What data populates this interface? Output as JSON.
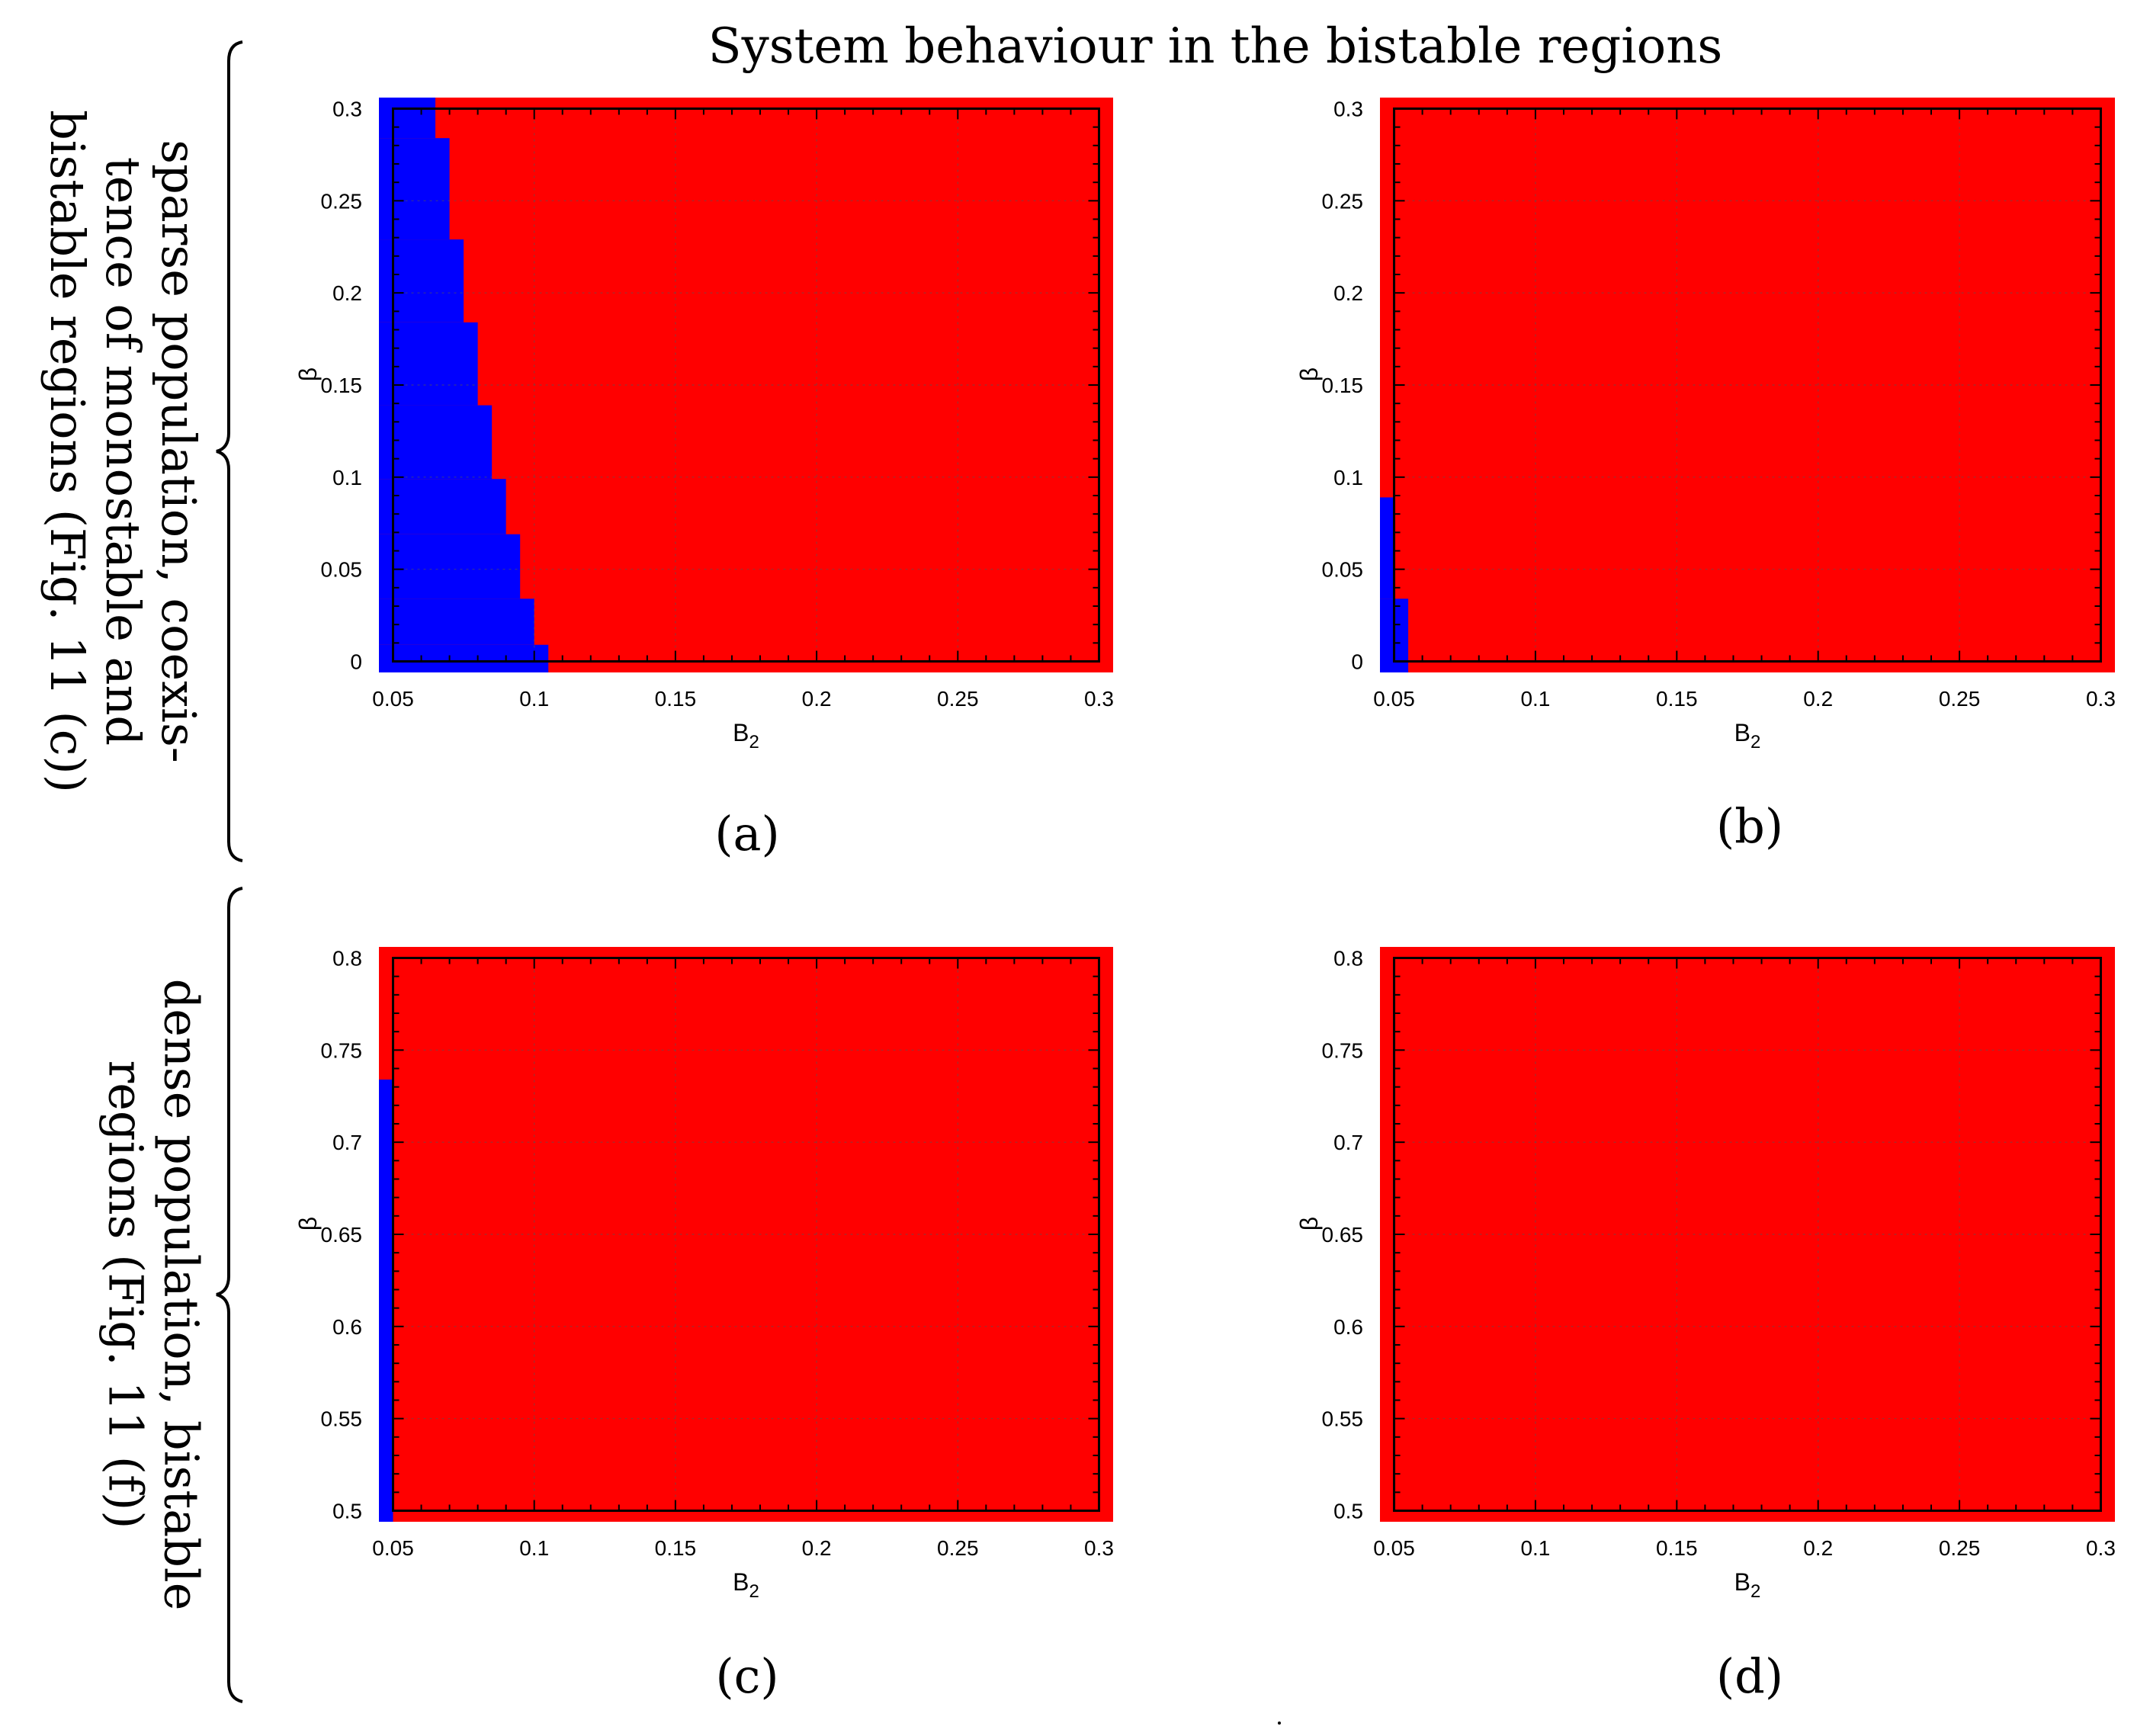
{
  "title": "System behaviour in the bistable regions",
  "row_labels": [
    {
      "lines": [
        "sparse population, coexis-",
        "tence of monostable and",
        "bistable regions (Fig. 11 (c))"
      ]
    },
    {
      "lines": [
        "dense population, bistable",
        "regions (Fig. 11 (f))"
      ]
    }
  ],
  "colors": {
    "red_region": "#ff0000",
    "blue_region": "#0000ff",
    "axis": "#000000",
    "grid": "#555555"
  },
  "chart_data": [
    {
      "type": "heatmap",
      "caption": "(a)",
      "xlabel": "B",
      "xlabel_sub": "2",
      "ylabel": "β",
      "xlim": [
        0.045,
        0.305
      ],
      "ylim": [
        -0.006,
        0.306
      ],
      "plot_xlim": [
        0.05,
        0.3
      ],
      "plot_ylim": [
        0.0,
        0.3
      ],
      "x_ticks": [
        "0.05",
        "0.1",
        "0.15",
        "0.2",
        "0.25",
        "0.3"
      ],
      "y_ticks": [
        "0",
        "0.05",
        "0.1",
        "0.15",
        "0.2",
        "0.25",
        "0.3"
      ],
      "background": "red",
      "blue_region": [
        {
          "x0": 0.045,
          "x1": 0.105,
          "y0": -0.006,
          "y1": 0.009
        },
        {
          "x0": 0.045,
          "x1": 0.1,
          "y0": 0.009,
          "y1": 0.034
        },
        {
          "x0": 0.045,
          "x1": 0.095,
          "y0": 0.034,
          "y1": 0.069
        },
        {
          "x0": 0.045,
          "x1": 0.09,
          "y0": 0.069,
          "y1": 0.099
        },
        {
          "x0": 0.045,
          "x1": 0.085,
          "y0": 0.099,
          "y1": 0.139
        },
        {
          "x0": 0.045,
          "x1": 0.08,
          "y0": 0.139,
          "y1": 0.184
        },
        {
          "x0": 0.045,
          "x1": 0.075,
          "y0": 0.184,
          "y1": 0.229
        },
        {
          "x0": 0.045,
          "x1": 0.07,
          "y0": 0.229,
          "y1": 0.284
        },
        {
          "x0": 0.045,
          "x1": 0.065,
          "y0": 0.284,
          "y1": 0.306
        }
      ]
    },
    {
      "type": "heatmap",
      "caption": "(b)",
      "xlabel": "B",
      "xlabel_sub": "2",
      "ylabel": "β",
      "xlim": [
        0.045,
        0.305
      ],
      "ylim": [
        -0.006,
        0.306
      ],
      "plot_xlim": [
        0.05,
        0.3
      ],
      "plot_ylim": [
        0.0,
        0.3
      ],
      "x_ticks": [
        "0.05",
        "0.1",
        "0.15",
        "0.2",
        "0.25",
        "0.3"
      ],
      "y_ticks": [
        "0",
        "0.05",
        "0.1",
        "0.15",
        "0.2",
        "0.25",
        "0.3"
      ],
      "background": "red",
      "blue_region": [
        {
          "x0": 0.045,
          "x1": 0.055,
          "y0": -0.006,
          "y1": 0.034
        },
        {
          "x0": 0.045,
          "x1": 0.05,
          "y0": 0.034,
          "y1": 0.089
        }
      ]
    },
    {
      "type": "heatmap",
      "caption": "(c)",
      "xlabel": "B",
      "xlabel_sub": "2",
      "ylabel": "β",
      "xlim": [
        0.045,
        0.305
      ],
      "ylim": [
        0.494,
        0.806
      ],
      "plot_xlim": [
        0.05,
        0.3
      ],
      "plot_ylim": [
        0.5,
        0.8
      ],
      "x_ticks": [
        "0.05",
        "0.1",
        "0.15",
        "0.2",
        "0.25",
        "0.3"
      ],
      "y_ticks": [
        "0.5",
        "0.55",
        "0.6",
        "0.65",
        "0.7",
        "0.75",
        "0.8"
      ],
      "background": "red",
      "blue_region": [
        {
          "x0": 0.045,
          "x1": 0.05,
          "y0": 0.494,
          "y1": 0.734
        }
      ]
    },
    {
      "type": "heatmap",
      "caption": "(d)",
      "xlabel": "B",
      "xlabel_sub": "2",
      "ylabel": "β",
      "xlim": [
        0.045,
        0.305
      ],
      "ylim": [
        0.494,
        0.806
      ],
      "plot_xlim": [
        0.05,
        0.3
      ],
      "plot_ylim": [
        0.5,
        0.8
      ],
      "x_ticks": [
        "0.05",
        "0.1",
        "0.15",
        "0.2",
        "0.25",
        "0.3"
      ],
      "y_ticks": [
        "0.5",
        "0.55",
        "0.6",
        "0.65",
        "0.7",
        "0.75",
        "0.8"
      ],
      "background": "red",
      "blue_region": []
    }
  ]
}
